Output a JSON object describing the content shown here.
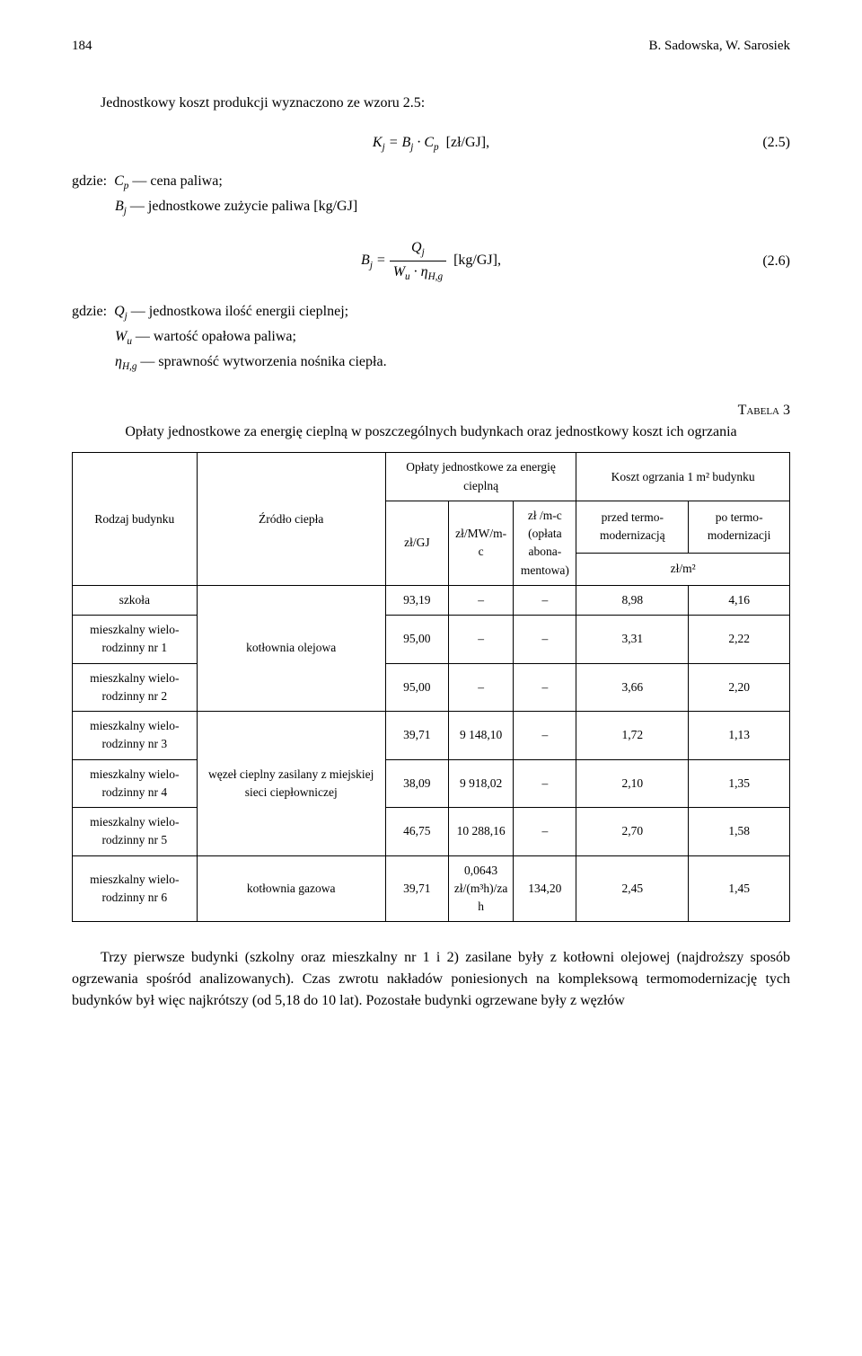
{
  "header": {
    "page": "184",
    "authors": "B. Sadowska, W. Sarosiek"
  },
  "para1": "Jednostkowy koszt produkcji wyznaczono ze wzoru 2.5:",
  "eq1": {
    "unit": "[zł/GJ],",
    "num": "(2.5)"
  },
  "desc1": {
    "label": "gdzie:",
    "line1_sym": "C",
    "line1_sub": "p",
    "line1_txt": "— cena paliwa;",
    "line2_sym": "B",
    "line2_sub": "j",
    "line2_txt": "— jednostkowe zużycie paliwa [kg/GJ]"
  },
  "eq2": {
    "unit": "[kg/GJ],",
    "num": "(2.6)"
  },
  "desc2": {
    "label": "gdzie:",
    "line1": "— jednostkowa ilość energii cieplnej;",
    "line2": "— wartość opałowa paliwa;",
    "line3": "— sprawność wytworzenia nośnika ciepła."
  },
  "table": {
    "caption": "Tabela 3",
    "title": "Opłaty jednostkowe za energię cieplną w poszczególnych budynkach oraz jednostkowy koszt ich ogrzania",
    "headers": {
      "h1": "Rodzaj budynku",
      "h2": "Źródło ciepła",
      "h3": "Opłaty jednostkowe za energię cieplną",
      "h4": "Koszt ogrzania 1 m² budynku",
      "h5": "zł/GJ",
      "h6": "zł/MW/m-c",
      "h7": "zł /m-c (opłata abona­mentowa)",
      "h8": "przed termo­modernizacją",
      "h9": "po termo­modernizacji",
      "h10": "zł/m²"
    },
    "rows": [
      {
        "c1": "szkoła",
        "c2": "kotłownia olejowa",
        "c3": "93,19",
        "c4": "–",
        "c5": "–",
        "c6": "8,98",
        "c7": "4,16"
      },
      {
        "c1": "mieszkalny wielo­rodzinny nr 1",
        "c3": "95,00",
        "c4": "–",
        "c5": "–",
        "c6": "3,31",
        "c7": "2,22"
      },
      {
        "c1": "mieszkalny wielo­rodzinny nr 2",
        "c3": "95,00",
        "c4": "–",
        "c5": "–",
        "c6": "3,66",
        "c7": "2,20"
      },
      {
        "c1": "mieszkalny wielo­rodzinny nr 3",
        "c2": "węzeł cieplny zasilany z miejskiej sieci ciepłow­niczej",
        "c3": "39,71",
        "c4": "9 148,10",
        "c5": "–",
        "c6": "1,72",
        "c7": "1,13"
      },
      {
        "c1": "mieszkalny wielo­rodzinny nr 4",
        "c3": "38,09",
        "c4": "9 918,02",
        "c5": "–",
        "c6": "2,10",
        "c7": "1,35"
      },
      {
        "c1": "mieszkalny wielo­rodzinny nr 5",
        "c3": "46,75",
        "c4": "10 288,16",
        "c5": "–",
        "c6": "2,70",
        "c7": "1,58"
      },
      {
        "c1": "mieszkalny wielo­rodzinny nr 6",
        "c2": "kotłownia gazowa",
        "c3": "39,71",
        "c4": "0,0643 zł/(m³h)/za h",
        "c5": "134,20",
        "c6": "2,45",
        "c7": "1,45"
      }
    ]
  },
  "para2": "Trzy pierwsze budynki (szkolny oraz mieszkalny nr 1 i 2) zasilane były z kotłow­ni olejowej (najdroższy sposób ogrzewania spośród analizowanych). Czas zwrotu nakładów poniesionych na kompleksową termomodernizację tych budynków był więc najkrótszy (od 5,18 do 10 lat). Pozostałe budynki ogrzewane były z węzłów"
}
